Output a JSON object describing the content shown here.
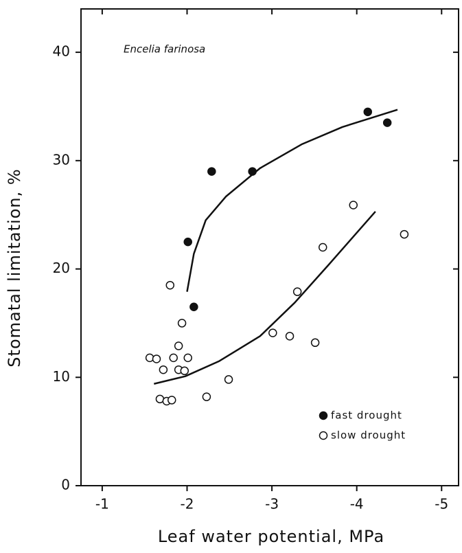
{
  "chart_data": {
    "type": "scatter",
    "annotation": "Encelia farinosa",
    "xlabel": "Leaf water potential, MPa",
    "ylabel": "Stomatal limitation, %",
    "xlim": [
      -0.75,
      -5.2
    ],
    "ylim": [
      0,
      44
    ],
    "xticks": [
      -1,
      -2,
      -3,
      -4,
      -5
    ],
    "yticks": [
      0,
      10,
      20,
      30,
      40
    ],
    "legend": "lower right",
    "color": "#111111",
    "series": [
      {
        "name": "fast drought",
        "marker": "filled",
        "x": [
          -2.01,
          -2.08,
          -2.29,
          -2.77,
          -4.13,
          -4.36
        ],
        "values": [
          22.5,
          16.5,
          29.0,
          29.0,
          34.5,
          33.5
        ]
      },
      {
        "name": "slow drought",
        "marker": "open",
        "x": [
          -1.56,
          -1.64,
          -1.72,
          -1.68,
          -1.76,
          -1.82,
          -1.8,
          -1.84,
          -1.9,
          -1.9,
          -1.94,
          -1.97,
          -2.01,
          -2.23,
          -2.49,
          -3.01,
          -3.21,
          -3.3,
          -3.51,
          -3.6,
          -3.96,
          -4.56
        ],
        "values": [
          11.8,
          11.7,
          10.7,
          8.0,
          7.8,
          7.9,
          18.5,
          11.8,
          12.9,
          10.7,
          15.0,
          10.6,
          11.8,
          8.2,
          9.8,
          14.1,
          13.8,
          17.9,
          13.2,
          22.0,
          25.9,
          23.2
        ]
      }
    ],
    "fits": [
      {
        "x": [
          -2.0,
          -2.08,
          -2.22,
          -2.46,
          -2.86,
          -3.35,
          -3.83,
          -4.48
        ],
        "values": [
          17.9,
          21.4,
          24.5,
          26.7,
          29.3,
          31.5,
          33.1,
          34.7
        ]
      },
      {
        "x": [
          -1.61,
          -1.98,
          -2.38,
          -2.86,
          -3.27,
          -3.67,
          -4.22
        ],
        "values": [
          9.4,
          10.1,
          11.5,
          13.8,
          16.9,
          20.4,
          25.3
        ]
      }
    ]
  }
}
